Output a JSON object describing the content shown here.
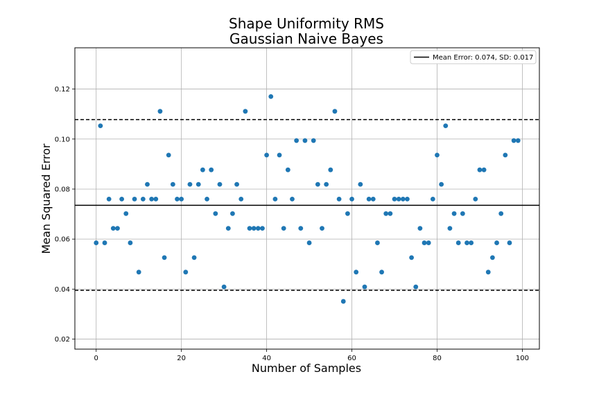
{
  "chart_data": {
    "type": "scatter",
    "title": "Shape Uniformity RMS",
    "subtitle": "Gaussian Naive Bayes",
    "xlabel": "Number of Samples",
    "ylabel": "Mean Squared Error",
    "xlim": [
      -5,
      104
    ],
    "ylim": [
      0.016,
      0.1365
    ],
    "x_ticks": [
      0,
      20,
      40,
      60,
      80,
      100
    ],
    "y_ticks": [
      0.02,
      0.04,
      0.06,
      0.08,
      0.1,
      0.12
    ],
    "y_tick_labels": [
      "0.02",
      "0.04",
      "0.06",
      "0.08",
      "0.10",
      "0.12"
    ],
    "grid": true,
    "legend_position": "top-right",
    "legend": [
      "Mean Error: 0.074, SD: 0.017"
    ],
    "mean_line": 0.0735,
    "sd_lines": [
      0.0395,
      0.1078
    ],
    "point_color": "#1f77b4",
    "x": [
      0,
      1,
      2,
      3,
      4,
      5,
      6,
      7,
      8,
      9,
      10,
      11,
      12,
      13,
      14,
      15,
      16,
      17,
      18,
      19,
      20,
      21,
      22,
      23,
      24,
      25,
      26,
      27,
      28,
      29,
      30,
      31,
      32,
      33,
      34,
      35,
      36,
      37,
      38,
      39,
      40,
      41,
      42,
      43,
      44,
      45,
      46,
      47,
      48,
      49,
      50,
      51,
      52,
      53,
      54,
      55,
      56,
      57,
      58,
      59,
      60,
      61,
      62,
      63,
      64,
      65,
      66,
      67,
      68,
      69,
      70,
      71,
      72,
      73,
      74,
      75,
      76,
      77,
      78,
      79,
      80,
      81,
      82,
      83,
      84,
      85,
      86,
      87,
      88,
      89,
      90,
      91,
      92,
      93,
      94,
      95,
      96,
      97,
      98,
      99
    ],
    "y": [
      0.0585,
      0.1053,
      0.0585,
      0.076,
      0.0643,
      0.0643,
      0.076,
      0.0702,
      0.0585,
      0.076,
      0.0468,
      0.076,
      0.0819,
      0.076,
      0.076,
      0.1111,
      0.0526,
      0.0936,
      0.0819,
      0.076,
      0.076,
      0.0468,
      0.0819,
      0.0526,
      0.0819,
      0.0877,
      0.076,
      0.0877,
      0.0702,
      0.0819,
      0.0409,
      0.0643,
      0.0702,
      0.0819,
      0.076,
      0.1111,
      0.0643,
      0.0643,
      0.0643,
      0.0643,
      0.0936,
      0.117,
      0.076,
      0.0936,
      0.0643,
      0.0877,
      0.076,
      0.0994,
      0.0643,
      0.0994,
      0.0585,
      0.0994,
      0.0819,
      0.0643,
      0.0819,
      0.0877,
      0.1111,
      0.076,
      0.0351,
      0.0702,
      0.076,
      0.0468,
      0.0819,
      0.0409,
      0.076,
      0.076,
      0.0585,
      0.0468,
      0.0702,
      0.0702,
      0.076,
      0.076,
      0.076,
      0.076,
      0.0526,
      0.0409,
      0.0643,
      0.0585,
      0.0585,
      0.076,
      0.0936,
      0.0819,
      0.1053,
      0.0643,
      0.0702,
      0.0585,
      0.0702,
      0.0585,
      0.0585,
      0.076,
      0.0877,
      0.0877,
      0.0468,
      0.0526,
      0.0585,
      0.0702,
      0.0936,
      0.0585,
      0.0994,
      0.0994
    ]
  }
}
